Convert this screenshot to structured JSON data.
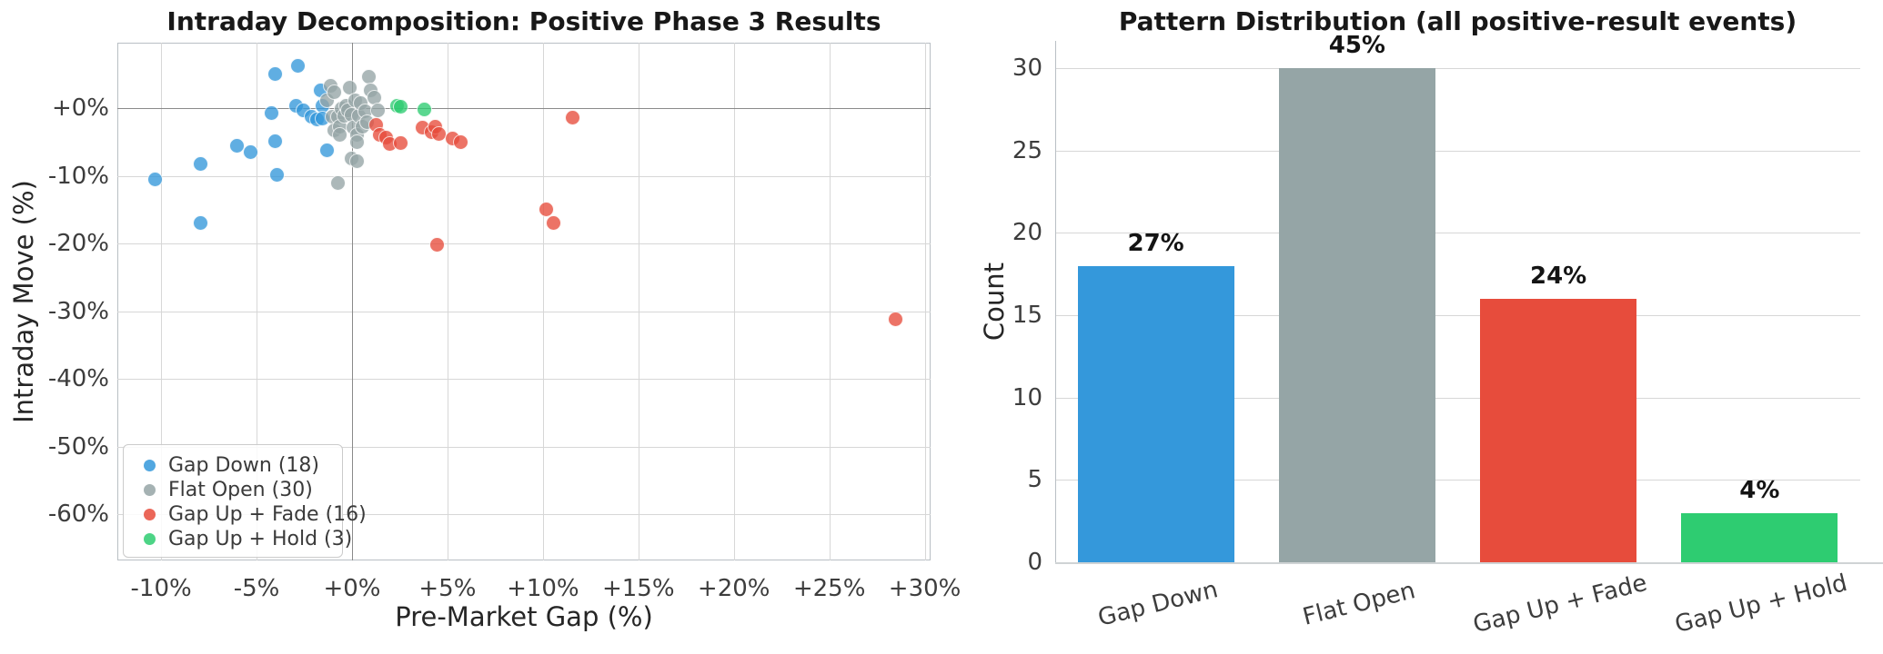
{
  "figure": {
    "background": "#ffffff",
    "grid_color": "#d7d7d7",
    "zero_line_color": "#8a8a8a",
    "text_color": "#3d3d3d"
  },
  "chart_data": [
    {
      "type": "scatter",
      "title": "Intraday Decomposition: Positive Phase 3 Results",
      "xlabel": "Pre-Market Gap (%)",
      "ylabel": "Intraday Move (%)",
      "xlim": [
        -12.3,
        30.3
      ],
      "ylim": [
        -66.8,
        9.7
      ],
      "grid": true,
      "zero_lines": true,
      "legend_position": "lower left",
      "xticks": {
        "values": [
          -10,
          -5,
          0,
          5,
          10,
          15,
          20,
          25,
          30
        ],
        "labels": [
          "-10%",
          "-5%",
          "+0%",
          "+5%",
          "+10%",
          "+15%",
          "+20%",
          "+25%",
          "+30%"
        ]
      },
      "yticks": {
        "values": [
          0,
          -10,
          -20,
          -30,
          -40,
          -50,
          -60
        ],
        "labels": [
          "+0%",
          "-10%",
          "-20%",
          "-30%",
          "-40%",
          "-50%",
          "-60%"
        ]
      },
      "series": [
        {
          "name": "Gap Down (18)",
          "color": "#3498db",
          "points": [
            [
              -10.3,
              -10.6
            ],
            [
              -7.9,
              -8.3
            ],
            [
              -7.9,
              -17.0
            ],
            [
              -6.0,
              -5.7
            ],
            [
              -5.3,
              -6.6
            ],
            [
              -4.2,
              -0.8
            ],
            [
              -4.0,
              4.9
            ],
            [
              -4.0,
              -5.0
            ],
            [
              -3.9,
              -9.9
            ],
            [
              -2.8,
              6.2
            ],
            [
              -2.9,
              0.3
            ],
            [
              -2.5,
              -0.4
            ],
            [
              -2.1,
              -1.3
            ],
            [
              -1.8,
              -1.7
            ],
            [
              -1.6,
              2.6
            ],
            [
              -1.5,
              0.2
            ],
            [
              -1.5,
              -1.6
            ],
            [
              -1.3,
              -6.3
            ]
          ]
        },
        {
          "name": "Flat Open (30)",
          "color": "#95a5a6",
          "points": [
            [
              -1.3,
              1.0
            ],
            [
              -1.1,
              3.2
            ],
            [
              -0.9,
              2.2
            ],
            [
              -1.0,
              -1.3
            ],
            [
              -0.9,
              -3.4
            ],
            [
              -0.7,
              -1.4
            ],
            [
              -0.7,
              -11.2
            ],
            [
              -0.6,
              -2.8
            ],
            [
              -0.6,
              -4.1
            ],
            [
              -0.5,
              -0.2
            ],
            [
              -0.4,
              -1.2
            ],
            [
              -0.3,
              0.3
            ],
            [
              -0.2,
              -0.4
            ],
            [
              -0.1,
              2.9
            ],
            [
              0.0,
              -1.1
            ],
            [
              0.0,
              -7.5
            ],
            [
              0.1,
              -3.0
            ],
            [
              0.2,
              1.0
            ],
            [
              0.3,
              -4.1
            ],
            [
              0.3,
              -5.1
            ],
            [
              0.3,
              -7.9
            ],
            [
              0.4,
              -1.2
            ],
            [
              0.5,
              0.7
            ],
            [
              0.6,
              -2.8
            ],
            [
              0.7,
              -0.5
            ],
            [
              0.9,
              4.6
            ],
            [
              0.8,
              -2.1
            ],
            [
              1.0,
              2.5
            ],
            [
              1.2,
              1.4
            ],
            [
              1.4,
              -0.4
            ]
          ]
        },
        {
          "name": "Gap Up + Fade (16)",
          "color": "#e74c3c",
          "points": [
            [
              1.3,
              -2.5
            ],
            [
              1.5,
              -4.1
            ],
            [
              1.8,
              -4.4
            ],
            [
              2.0,
              -5.4
            ],
            [
              2.6,
              -5.2
            ],
            [
              3.7,
              -3.0
            ],
            [
              4.2,
              -3.7
            ],
            [
              4.4,
              -2.8
            ],
            [
              4.6,
              -3.9
            ],
            [
              5.3,
              -4.6
            ],
            [
              5.7,
              -5.1
            ],
            [
              4.5,
              -20.2
            ],
            [
              10.2,
              -15.1
            ],
            [
              10.6,
              -17.1
            ],
            [
              11.6,
              -1.5
            ],
            [
              28.5,
              -31.3
            ]
          ]
        },
        {
          "name": "Gap Up + Hold (3)",
          "color": "#2ecc71",
          "points": [
            [
              2.4,
              0.3
            ],
            [
              2.6,
              0.1
            ],
            [
              3.8,
              -0.3
            ]
          ]
        }
      ]
    },
    {
      "type": "bar",
      "title": "Pattern Distribution (all positive-result events)",
      "xlabel": "",
      "ylabel": "Count",
      "categories": [
        "Gap Down",
        "Flat Open",
        "Gap Up + Fade",
        "Gap Up + Hold"
      ],
      "values": [
        18,
        30,
        16,
        3
      ],
      "bar_labels": [
        "27%",
        "45%",
        "24%",
        "4%"
      ],
      "colors": [
        "#3498db",
        "#95a5a6",
        "#e74c3c",
        "#2ecc71"
      ],
      "ylim": [
        0,
        31.6
      ],
      "grid": true,
      "yticks": {
        "values": [
          0,
          5,
          10,
          15,
          20,
          25,
          30
        ],
        "labels": [
          "0",
          "5",
          "10",
          "15",
          "20",
          "25",
          "30"
        ]
      }
    }
  ]
}
